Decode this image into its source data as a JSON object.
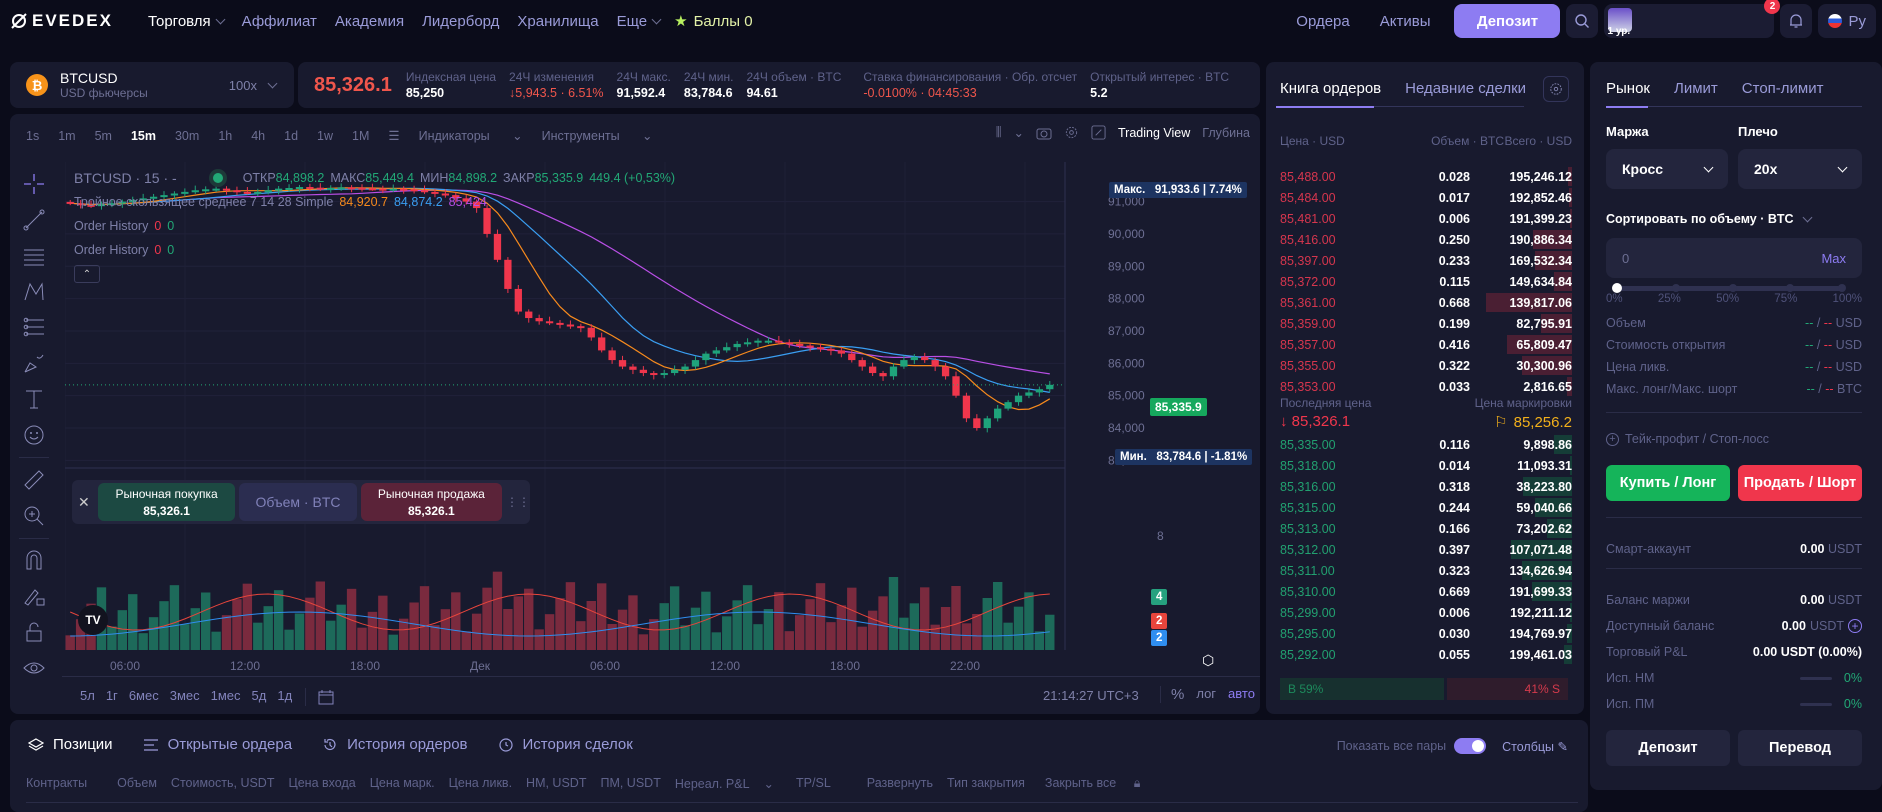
{
  "topbar": {
    "logo": "EVEDEX",
    "nav": [
      {
        "label": "Торговля",
        "active": true,
        "dropdown": true
      },
      {
        "label": "Аффилиат"
      },
      {
        "label": "Академия"
      },
      {
        "label": "Лидерборд"
      },
      {
        "label": "Хранилища"
      },
      {
        "label": "Еще",
        "dropdown": true
      }
    ],
    "points_label": "Баллы 0",
    "orders_link": "Ордера",
    "assets_link": "Активы",
    "deposit_button": "Депозит",
    "user_level": "1 ур.",
    "notification_count": "2",
    "language": "Ру"
  },
  "symbol": {
    "name": "BTCUSD",
    "type": "USD фьючерсы",
    "leverage": "100x"
  },
  "stats": {
    "last_price": "85,326.1",
    "items": [
      {
        "label": "Индексная цена",
        "value": "85,250"
      },
      {
        "label": "24Ч изменения",
        "value": "↓5,943.5 · 6.51%",
        "neg": true
      },
      {
        "label": "24Ч макс.",
        "value": "91,592.4"
      },
      {
        "label": "24Ч мин.",
        "value": "83,784.6"
      },
      {
        "label": "24Ч объем · BTC",
        "value": "94.61"
      },
      {
        "label": "Ставка финансирования · Обр. отсчет",
        "value": "-0.0100% · 04:45:33",
        "neg": true
      },
      {
        "label": "Открытый интерес · BTC",
        "value": "5.2"
      }
    ]
  },
  "chart": {
    "timeframes": [
      "1s",
      "1m",
      "5m",
      "15m",
      "30m",
      "1h",
      "4h",
      "1d",
      "1w",
      "1M"
    ],
    "active_timeframe": "15m",
    "indicators_label": "Индикаторы",
    "tools_label": "Инструменты",
    "trading_view_label": "Trading View",
    "depth_label": "Глубина",
    "legend": {
      "title": "BTCUSD · 15 · -",
      "ohlc": "ОТКР84,898.2 МАКС85,449.4 МИН84,898.2 ЗАКР85,335.9 449.4 (+0,53%)",
      "open_l": "ОТКР",
      "open": "84,898.2",
      "high_l": "МАКС",
      "high": "85,449.4",
      "low_l": "МИН",
      "low": "84,898.2",
      "close_l": "ЗАКР",
      "close": "85,335.9",
      "change": "449.4 (+0,53%)",
      "ma_label": "Тройное скользящее среднее 7 14 28 Simple",
      "ma_values": [
        "84,920.7",
        "84,874.2",
        "85,424"
      ],
      "order_history_label": "Order History",
      "order_history_values": [
        "0",
        "0"
      ]
    },
    "max_tag": {
      "label": "Макс.",
      "value": "91,933.6 | 7.74%"
    },
    "min_tag": {
      "label": "Мин.",
      "value": "83,784.6 | -1.81%"
    },
    "last_tag": "85,335.9",
    "volume_axis_label": "8",
    "volume_tags": [
      "4",
      "2",
      "2"
    ],
    "x_ticks": [
      "06:00",
      "12:00",
      "18:00",
      "Дек",
      "06:00",
      "12:00",
      "18:00",
      "22:00"
    ],
    "ranges": [
      "5л",
      "1г",
      "6мес",
      "3мес",
      "1мес",
      "5д",
      "1д"
    ],
    "clock": "21:14:27 UTC+3",
    "scale_opts": [
      "%",
      "лог",
      "авто"
    ],
    "quick_order": {
      "buy_label": "Рыночная покупка",
      "buy_price": "85,326.1",
      "qty_placeholder": "Объем · BTC",
      "sell_label": "Рыночная продажа",
      "sell_price": "85,326.1"
    }
  },
  "chart_data": {
    "type": "candlestick",
    "title": "BTCUSD · 15",
    "ylabel": "USD",
    "y_ticks": [
      91000,
      90000,
      89000,
      88000,
      87000,
      86000,
      85000,
      84000,
      83000
    ],
    "ylim": [
      82950,
      92100
    ],
    "x_ticks": [
      "06:00",
      "12:00",
      "18:00",
      "Дек",
      "06:00",
      "12:00",
      "18:00",
      "22:00"
    ],
    "close_series": [
      90950,
      90900,
      90880,
      90920,
      90950,
      91000,
      91050,
      91100,
      91150,
      91200,
      91250,
      91300,
      91350,
      91380,
      91400,
      91350,
      91300,
      91280,
      91300,
      91350,
      91400,
      91420,
      91450,
      91430,
      91400,
      91420,
      91440,
      91430,
      91410,
      91400,
      91380,
      91400,
      91380,
      91350,
      91300,
      91250,
      91200,
      91100,
      91000,
      90800,
      90000,
      89200,
      88300,
      87600,
      87400,
      87300,
      87250,
      87200,
      87150,
      87100,
      86800,
      86400,
      86100,
      85900,
      85800,
      85700,
      85650,
      85700,
      85800,
      85900,
      86100,
      86300,
      86400,
      86500,
      86600,
      86650,
      86700,
      86700,
      86650,
      86600,
      86550,
      86500,
      86450,
      86400,
      86300,
      86100,
      85900,
      85700,
      85600,
      85900,
      86100,
      86200,
      86100,
      85900,
      85600,
      85000,
      84300,
      84000,
      84300,
      84600,
      84800,
      85000,
      85100,
      85200,
      85335.9
    ],
    "ma7_last": 84920.7,
    "ma14_last": 84874.2,
    "ma28_last": 85424,
    "volume_last": [
      4,
      2,
      2
    ]
  },
  "orderbook": {
    "tabs": [
      "Книга ордеров",
      "Недавние сделки"
    ],
    "headers": [
      "Цена · USD",
      "Объем · BTC",
      "Всего · USD"
    ],
    "asks": [
      {
        "price": "85,488.00",
        "qty": "0.028",
        "total": "195,246.12",
        "depth": 4
      },
      {
        "price": "85,484.00",
        "qty": "0.017",
        "total": "192,852.46",
        "depth": 3
      },
      {
        "price": "85,481.00",
        "qty": "0.006",
        "total": "191,399.23",
        "depth": 2
      },
      {
        "price": "85,416.00",
        "qty": "0.250",
        "total": "190,886.34",
        "depth": 39
      },
      {
        "price": "85,397.00",
        "qty": "0.233",
        "total": "169,532.34",
        "depth": 37
      },
      {
        "price": "85,372.00",
        "qty": "0.115",
        "total": "149,634.84",
        "depth": 18
      },
      {
        "price": "85,361.00",
        "qty": "0.668",
        "total": "139,817.06",
        "depth": 86
      },
      {
        "price": "85,359.00",
        "qty": "0.199",
        "total": "82,795.91",
        "depth": 31
      },
      {
        "price": "85,357.00",
        "qty": "0.416",
        "total": "65,809.47",
        "depth": 65
      },
      {
        "price": "85,355.00",
        "qty": "0.322",
        "total": "30,300.96",
        "depth": 50
      },
      {
        "price": "85,353.00",
        "qty": "0.033",
        "total": "2,816.65",
        "depth": 5
      }
    ],
    "last_price_label": "Последняя цена",
    "last_price": "↓ 85,326.1",
    "mark_price_label": "Цена маркировки",
    "mark_price": "85,256.2",
    "bids": [
      {
        "price": "85,335.00",
        "qty": "0.116",
        "total": "9,898.86",
        "depth": 18
      },
      {
        "price": "85,318.00",
        "qty": "0.014",
        "total": "11,093.31",
        "depth": 2
      },
      {
        "price": "85,316.00",
        "qty": "0.318",
        "total": "38,223.80",
        "depth": 49
      },
      {
        "price": "85,315.00",
        "qty": "0.244",
        "total": "59,040.66",
        "depth": 37
      },
      {
        "price": "85,313.00",
        "qty": "0.166",
        "total": "73,202.62",
        "depth": 25
      },
      {
        "price": "85,312.00",
        "qty": "0.397",
        "total": "107,071.48",
        "depth": 61
      },
      {
        "price": "85,311.00",
        "qty": "0.323",
        "total": "134,626.94",
        "depth": 50
      },
      {
        "price": "85,310.00",
        "qty": "0.669",
        "total": "191,699.33",
        "depth": 40
      },
      {
        "price": "85,299.00",
        "qty": "0.006",
        "total": "192,211.12",
        "depth": 2
      },
      {
        "price": "85,295.00",
        "qty": "0.030",
        "total": "194,769.97",
        "depth": 5
      },
      {
        "price": "85,292.00",
        "qty": "0.055",
        "total": "199,461.03",
        "depth": 8
      }
    ],
    "buy_ratio": "B 59%",
    "sell_ratio": "41% S"
  },
  "trade": {
    "tabs": [
      "Рынок",
      "Лимит",
      "Стоп-лимит"
    ],
    "margin_label": "Маржа",
    "margin_value": "Кросс",
    "leverage_label": "Плечо",
    "leverage_value": "20x",
    "sort_label": "Сортировать по объему · BTC",
    "qty_placeholder": "0",
    "max_label": "Max",
    "slider_marks": [
      "0%",
      "25%",
      "50%",
      "75%",
      "100%"
    ],
    "info": [
      {
        "label": "Объем",
        "unit": "USD"
      },
      {
        "label": "Стоимость открытия",
        "unit": "USD"
      },
      {
        "label": "Цена ликв.",
        "unit": "USD"
      },
      {
        "label": "Макс. лонг/Макс. шорт",
        "unit": "BTC"
      }
    ],
    "tpsl_label": "Тейк-профит / Стоп-лосс",
    "buy_button": "Купить / Лонг",
    "sell_button": "Продать / Шорт",
    "smart_label": "Смарт-аккаунт",
    "smart_value": "0.00",
    "smart_unit": "USDT",
    "margin_balance_label": "Баланс маржи",
    "margin_balance": "0.00",
    "margin_unit": "USDT",
    "avail_label": "Доступный баланс",
    "avail_value": "0.00",
    "avail_unit": "USDT",
    "pnl_label": "Торговый P&L",
    "pnl_value": "0.00 USDT (0.00%)",
    "im_label": "Исп. НМ",
    "im_value": "0%",
    "mm_label": "Исп. ПМ",
    "mm_value": "0%",
    "deposit_button": "Депозит",
    "transfer_button": "Перевод"
  },
  "positions": {
    "tabs": [
      "Позиции",
      "Открытые ордера",
      "История ордеров",
      "История сделок"
    ],
    "show_all_label": "Показать все пары",
    "columns_label": "Столбцы",
    "columns": [
      "Контракты",
      "Объем",
      "Стоимость, USDT",
      "Цена входа",
      "Цена марк.",
      "Цена ликв.",
      "НМ, USDT",
      "ПМ, USDT",
      "Нереал. P&L",
      "TP/SL",
      "Развернуть",
      "Тип закрытия",
      "Закрыть все"
    ]
  }
}
